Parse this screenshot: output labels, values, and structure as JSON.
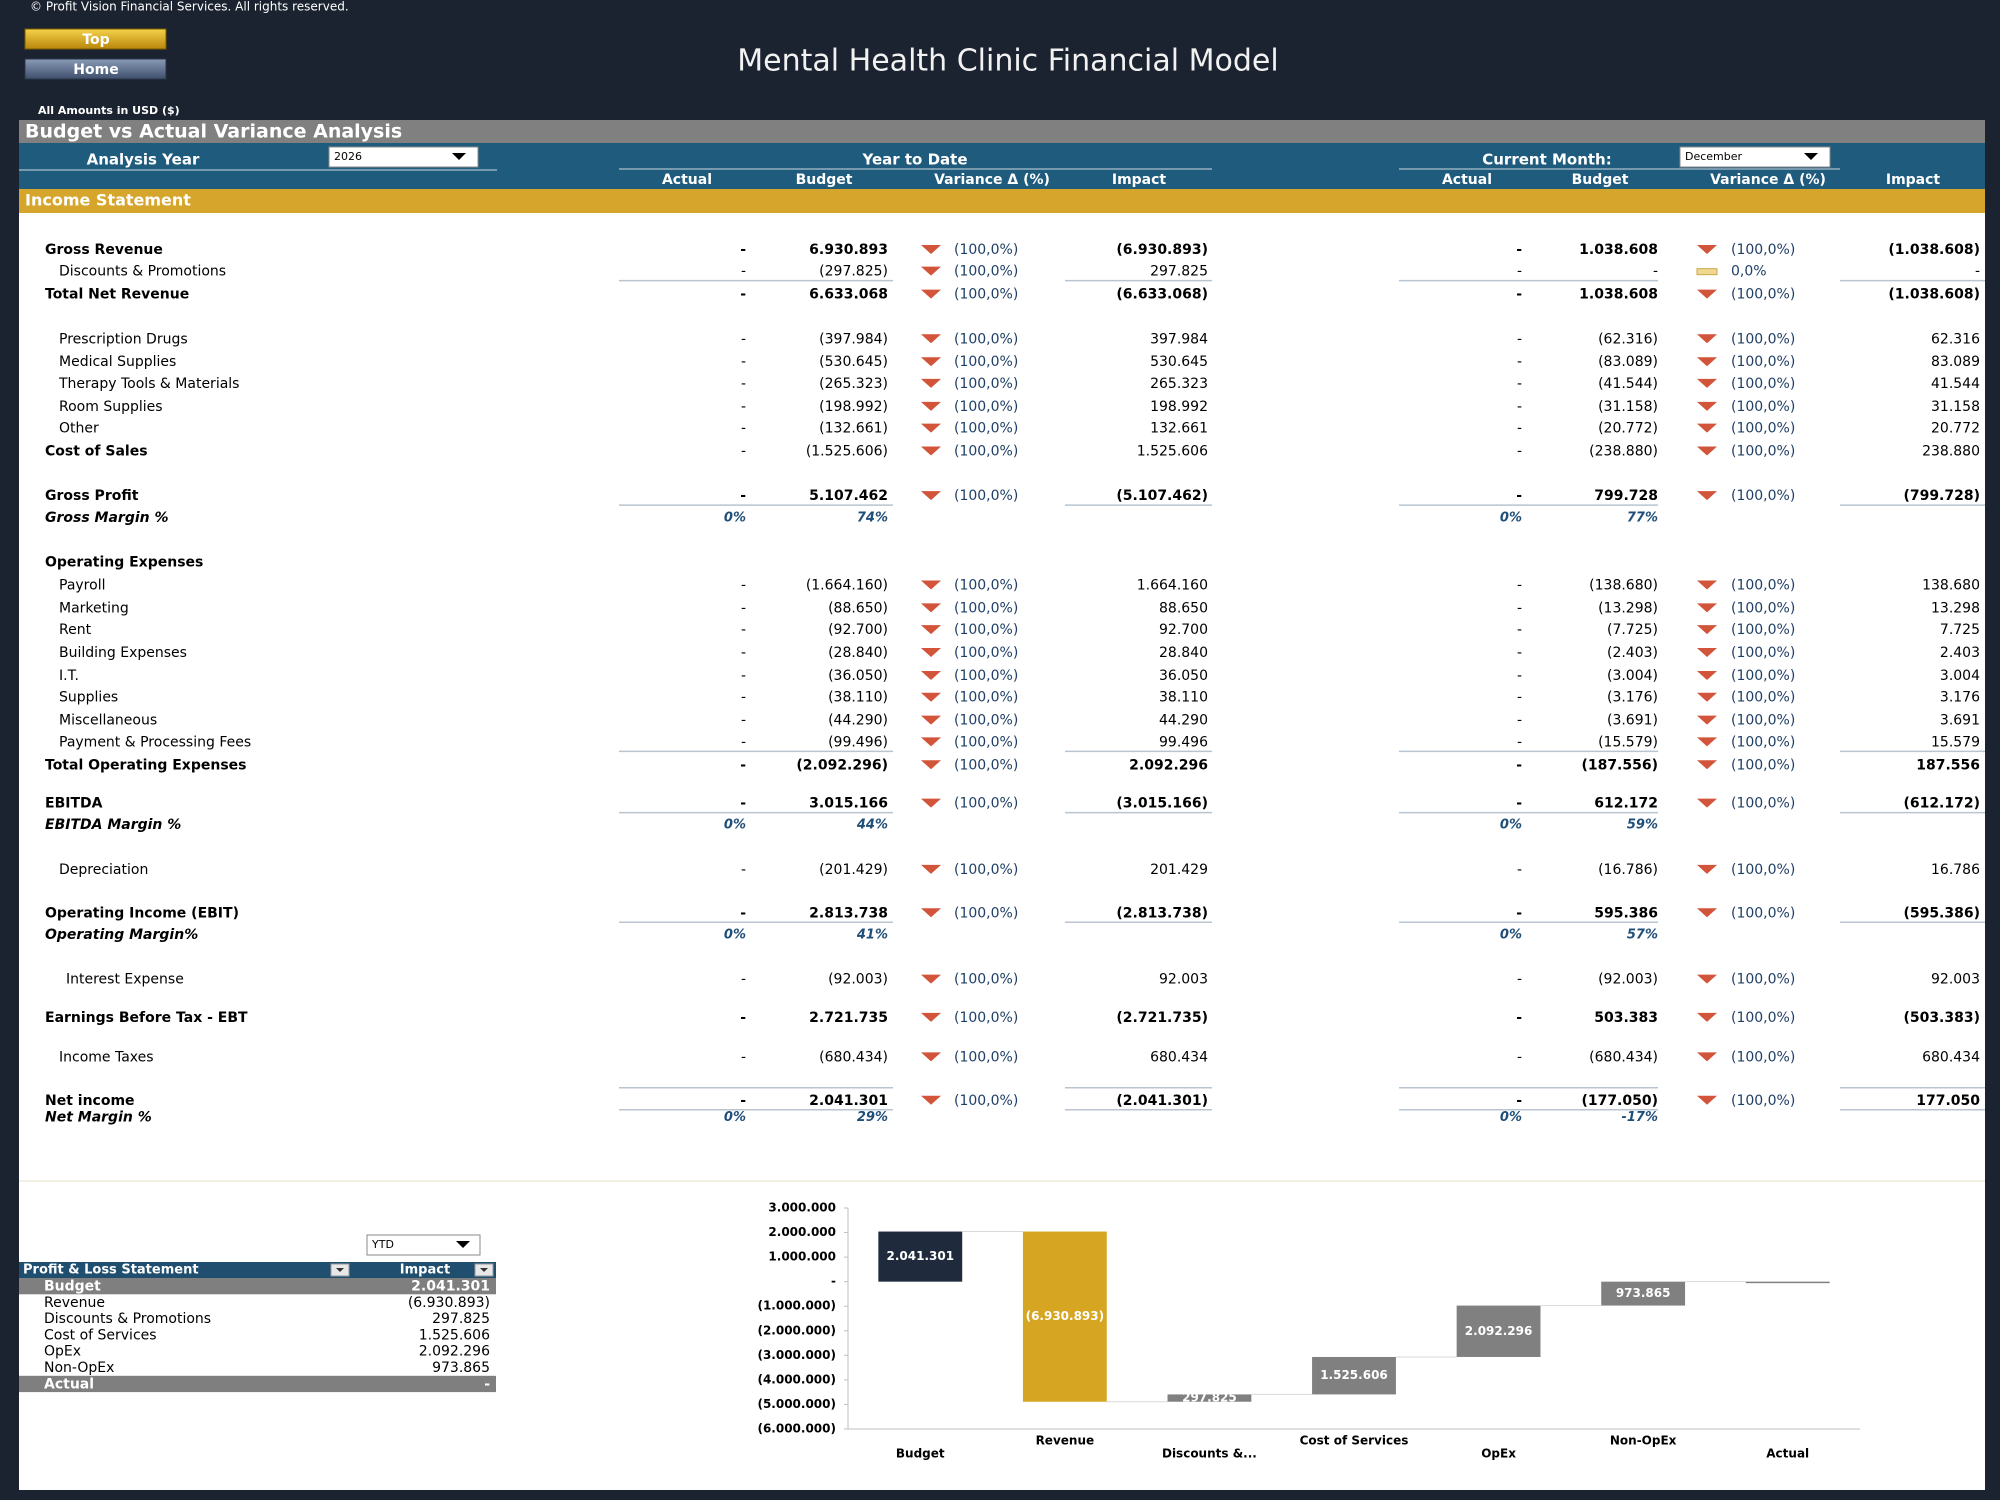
{
  "header": {
    "copyright": "© Profit Vision Financial Services. All rights reserved.",
    "buttons": [
      "Top",
      "Home"
    ],
    "title": "Mental Health Clinic Financial Model",
    "currency_note": "All Amounts in  USD ($)"
  },
  "section_title": "Budget vs Actual Variance Analysis",
  "controls": {
    "analysis_year_label": "Analysis Year",
    "analysis_year": "2026",
    "ytd_label": "Year to Date",
    "current_month_label": "Current Month:",
    "current_month": "December"
  },
  "columns": [
    "Actual",
    "Budget",
    "Variance Δ  (%)",
    "Impact"
  ],
  "statement_title": "Income Statement",
  "rows": [
    {
      "label": "Gross Revenue",
      "ytd": [
        "-",
        "6.930.893",
        "(100,0%)",
        "(6.930.893)"
      ],
      "cm": [
        "-",
        "1.038.608",
        "(100,0%)",
        "(1.038.608)"
      ]
    },
    {
      "label": "Discounts & Promotions",
      "ytd": [
        "-",
        "(297.825)",
        "(100,0%)",
        "297.825"
      ],
      "cm": [
        "-",
        "-",
        "0,0%",
        "-"
      ]
    },
    {
      "label": "Total Net Revenue",
      "ytd": [
        "-",
        "6.633.068",
        "(100,0%)",
        "(6.633.068)"
      ],
      "cm": [
        "-",
        "1.038.608",
        "(100,0%)",
        "(1.038.608)"
      ]
    },
    {
      "label": "Prescription Drugs",
      "ytd": [
        "-",
        "(397.984)",
        "(100,0%)",
        "397.984"
      ],
      "cm": [
        "-",
        "(62.316)",
        "(100,0%)",
        "62.316"
      ]
    },
    {
      "label": "Medical Supplies",
      "ytd": [
        "-",
        "(530.645)",
        "(100,0%)",
        "530.645"
      ],
      "cm": [
        "-",
        "(83.089)",
        "(100,0%)",
        "83.089"
      ]
    },
    {
      "label": "Therapy Tools & Materials",
      "ytd": [
        "-",
        "(265.323)",
        "(100,0%)",
        "265.323"
      ],
      "cm": [
        "-",
        "(41.544)",
        "(100,0%)",
        "41.544"
      ]
    },
    {
      "label": "Room Supplies",
      "ytd": [
        "-",
        "(198.992)",
        "(100,0%)",
        "198.992"
      ],
      "cm": [
        "-",
        "(31.158)",
        "(100,0%)",
        "31.158"
      ]
    },
    {
      "label": "Other",
      "ytd": [
        "-",
        "(132.661)",
        "(100,0%)",
        "132.661"
      ],
      "cm": [
        "-",
        "(20.772)",
        "(100,0%)",
        "20.772"
      ]
    },
    {
      "label": "Cost of Sales",
      "ytd": [
        "-",
        "(1.525.606)",
        "(100,0%)",
        "1.525.606"
      ],
      "cm": [
        "-",
        "(238.880)",
        "(100,0%)",
        "238.880"
      ]
    },
    {
      "label": "Gross Profit",
      "ytd": [
        "-",
        "5.107.462",
        "(100,0%)",
        "(5.107.462)"
      ],
      "cm": [
        "-",
        "799.728",
        "(100,0%)",
        "(799.728)"
      ]
    },
    {
      "label": "Gross Margin %",
      "ytd": [
        "0%",
        "74%"
      ],
      "cm": [
        "0%",
        "77%"
      ]
    },
    {
      "label": "Operating Expenses"
    },
    {
      "label": "Payroll",
      "ytd": [
        "-",
        "(1.664.160)",
        "(100,0%)",
        "1.664.160"
      ],
      "cm": [
        "-",
        "(138.680)",
        "(100,0%)",
        "138.680"
      ]
    },
    {
      "label": "Marketing",
      "ytd": [
        "-",
        "(88.650)",
        "(100,0%)",
        "88.650"
      ],
      "cm": [
        "-",
        "(13.298)",
        "(100,0%)",
        "13.298"
      ]
    },
    {
      "label": "Rent",
      "ytd": [
        "-",
        "(92.700)",
        "(100,0%)",
        "92.700"
      ],
      "cm": [
        "-",
        "(7.725)",
        "(100,0%)",
        "7.725"
      ]
    },
    {
      "label": "Building Expenses",
      "ytd": [
        "-",
        "(28.840)",
        "(100,0%)",
        "28.840"
      ],
      "cm": [
        "-",
        "(2.403)",
        "(100,0%)",
        "2.403"
      ]
    },
    {
      "label": "I.T.",
      "ytd": [
        "-",
        "(36.050)",
        "(100,0%)",
        "36.050"
      ],
      "cm": [
        "-",
        "(3.004)",
        "(100,0%)",
        "3.004"
      ]
    },
    {
      "label": "Supplies",
      "ytd": [
        "-",
        "(38.110)",
        "(100,0%)",
        "38.110"
      ],
      "cm": [
        "-",
        "(3.176)",
        "(100,0%)",
        "3.176"
      ]
    },
    {
      "label": "Miscellaneous",
      "ytd": [
        "-",
        "(44.290)",
        "(100,0%)",
        "44.290"
      ],
      "cm": [
        "-",
        "(3.691)",
        "(100,0%)",
        "3.691"
      ]
    },
    {
      "label": "Payment & Processing Fees",
      "ytd": [
        "-",
        "(99.496)",
        "(100,0%)",
        "99.496"
      ],
      "cm": [
        "-",
        "(15.579)",
        "(100,0%)",
        "15.579"
      ]
    },
    {
      "label": "Total Operating Expenses",
      "ytd": [
        "-",
        "(2.092.296)",
        "(100,0%)",
        "2.092.296"
      ],
      "cm": [
        "-",
        "(187.556)",
        "(100,0%)",
        "187.556"
      ]
    },
    {
      "label": "EBITDA",
      "ytd": [
        "-",
        "3.015.166",
        "(100,0%)",
        "(3.015.166)"
      ],
      "cm": [
        "-",
        "612.172",
        "(100,0%)",
        "(612.172)"
      ]
    },
    {
      "label": "EBITDA Margin %",
      "ytd": [
        "0%",
        "44%"
      ],
      "cm": [
        "0%",
        "59%"
      ]
    },
    {
      "label": "Depreciation",
      "ytd": [
        "-",
        "(201.429)",
        "(100,0%)",
        "201.429"
      ],
      "cm": [
        "-",
        "(16.786)",
        "(100,0%)",
        "16.786"
      ]
    },
    {
      "label": "Operating Income (EBIT)",
      "ytd": [
        "-",
        "2.813.738",
        "(100,0%)",
        "(2.813.738)"
      ],
      "cm": [
        "-",
        "595.386",
        "(100,0%)",
        "(595.386)"
      ]
    },
    {
      "label": "Operating Margin%",
      "ytd": [
        "0%",
        "41%"
      ],
      "cm": [
        "0%",
        "57%"
      ]
    },
    {
      "label": "Interest Expense",
      "ytd": [
        "-",
        "(92.003)",
        "(100,0%)",
        "92.003"
      ],
      "cm": [
        "-",
        "(92.003)",
        "(100,0%)",
        "92.003"
      ]
    },
    {
      "label": "Earnings Before Tax - EBT",
      "ytd": [
        "-",
        "2.721.735",
        "(100,0%)",
        "(2.721.735)"
      ],
      "cm": [
        "-",
        "503.383",
        "(100,0%)",
        "(503.383)"
      ]
    },
    {
      "label": "Income Taxes",
      "ytd": [
        "-",
        "(680.434)",
        "(100,0%)",
        "680.434"
      ],
      "cm": [
        "-",
        "(680.434)",
        "(100,0%)",
        "680.434"
      ]
    },
    {
      "label": "Net income",
      "ytd": [
        "-",
        "2.041.301",
        "(100,0%)",
        "(2.041.301)"
      ],
      "cm": [
        "-",
        "(177.050)",
        "(100,0%)",
        "177.050"
      ]
    },
    {
      "label": "Net Margin %",
      "ytd": [
        "0%",
        "29%"
      ],
      "cm": [
        "0%",
        "-17%"
      ]
    }
  ],
  "pl_table": {
    "period": "YTD",
    "headers": [
      "Profit & Loss Statement",
      "Impact"
    ],
    "rows": [
      [
        "Budget",
        "2.041.301"
      ],
      [
        "Revenue",
        "(6.930.893)"
      ],
      [
        "Discounts & Promotions",
        "297.825"
      ],
      [
        "Cost of Services",
        "1.525.606"
      ],
      [
        "OpEx",
        "2.092.296"
      ],
      [
        "Non-OpEx",
        "973.865"
      ],
      [
        "Actual",
        "-"
      ]
    ]
  },
  "chart_data": {
    "type": "waterfall",
    "categories": [
      "Budget",
      "Revenue",
      "Discounts &...",
      "Cost of Services",
      "OpEx",
      "Non-OpEx",
      "Actual"
    ],
    "values": [
      2041301,
      -6930893,
      297825,
      1525606,
      2092296,
      973865,
      0
    ],
    "value_labels": [
      "2.041.301",
      "(6.930.893)",
      "297.825",
      "1.525.606",
      "2.092.296",
      "973.865",
      null
    ],
    "colors": [
      "#1f2b3d",
      "#d6a521",
      "#808080",
      "#808080",
      "#808080",
      "#808080",
      "#808080"
    ],
    "ylim": [
      -6000000,
      3000000
    ],
    "yticks": [
      {
        "value": 3000000,
        "label": "3.000.000"
      },
      {
        "value": 2000000,
        "label": "2.000.000"
      },
      {
        "value": 1000000,
        "label": "1.000.000"
      },
      {
        "value": 0,
        "label": "-"
      },
      {
        "value": -1000000,
        "label": "(1.000.000)"
      },
      {
        "value": -2000000,
        "label": "(2.000.000)"
      },
      {
        "value": -3000000,
        "label": "(3.000.000)"
      },
      {
        "value": -4000000,
        "label": "(4.000.000)"
      },
      {
        "value": -5000000,
        "label": "(5.000.000)"
      },
      {
        "value": -6000000,
        "label": "(6.000.000)"
      }
    ]
  }
}
